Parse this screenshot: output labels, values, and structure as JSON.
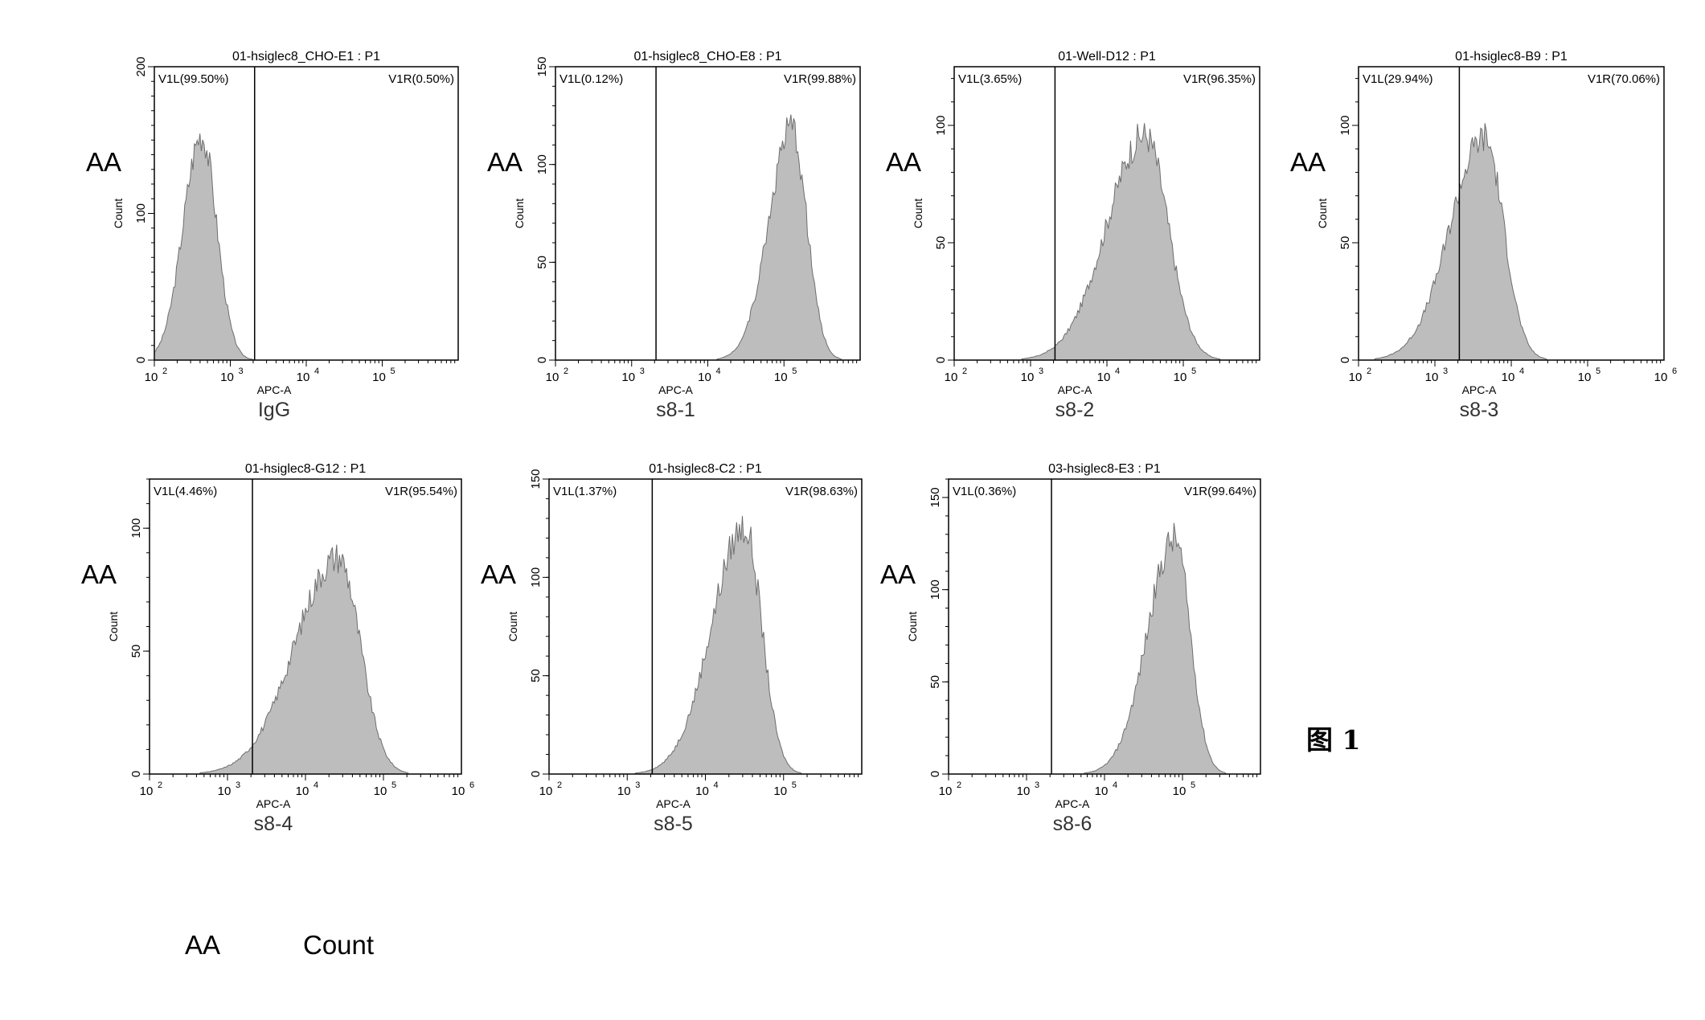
{
  "figure_label": "图 1",
  "legend": {
    "abbr": "AA",
    "meaning": "Count"
  },
  "chart_data": [
    {
      "type": "area",
      "title": "01-hsiglec8_CHO-E1 : P1",
      "xlabel": "APC-A",
      "ylabel": "Count",
      "side_label": "AA",
      "sample": "IgG",
      "xscale": "log",
      "xlim_exp": [
        2,
        6
      ],
      "x_tick_labels": [
        "10",
        "10",
        "10",
        "10"
      ],
      "x_tick_exps": [
        "2",
        "3",
        "4",
        "5"
      ],
      "ylim": [
        0,
        200
      ],
      "y_ticks": [
        0,
        100,
        200
      ],
      "gate_exp": 3.32,
      "gates": [
        {
          "name": "V1L",
          "percent": "99.50%",
          "label": "V1L(99.50%)"
        },
        {
          "name": "V1R",
          "percent": "0.50%",
          "label": "V1R(0.50%)"
        }
      ],
      "histogram": {
        "peak_exp": 2.62,
        "peak_count": 165,
        "sigma_left": 0.24,
        "sigma_right": 0.2
      }
    },
    {
      "type": "area",
      "title": "01-hsiglec8_CHO-E8 : P1",
      "xlabel": "APC-A",
      "ylabel": "Count",
      "side_label": "AA",
      "sample": "s8-1",
      "xscale": "log",
      "xlim_exp": [
        2,
        6
      ],
      "x_tick_labels": [
        "10",
        "10",
        "10",
        "10"
      ],
      "x_tick_exps": [
        "2",
        "3",
        "4",
        "5"
      ],
      "ylim": [
        0,
        150
      ],
      "y_ticks": [
        0,
        50,
        100,
        150
      ],
      "gate_exp": 3.32,
      "gates": [
        {
          "name": "V1L",
          "percent": "0.12%",
          "label": "V1L(0.12%)"
        },
        {
          "name": "V1R",
          "percent": "99.88%",
          "label": "V1R(99.88%)"
        }
      ],
      "histogram": {
        "peak_exp": 5.1,
        "peak_count": 127,
        "sigma_left": 0.3,
        "sigma_right": 0.2
      }
    },
    {
      "type": "area",
      "title": "01-Well-D12 : P1",
      "xlabel": "APC-A",
      "ylabel": "Count",
      "side_label": "AA",
      "sample": "s8-2",
      "xscale": "log",
      "xlim_exp": [
        2,
        6
      ],
      "x_tick_labels": [
        "10",
        "10",
        "10",
        "10"
      ],
      "x_tick_exps": [
        "2",
        "3",
        "4",
        "5"
      ],
      "ylim": [
        0,
        125
      ],
      "y_ticks": [
        0,
        50,
        100
      ],
      "gate_exp": 3.32,
      "gates": [
        {
          "name": "V1L",
          "percent": "3.65%",
          "label": "V1L(3.65%)"
        },
        {
          "name": "V1R",
          "percent": "96.35%",
          "label": "V1R(96.35%)"
        }
      ],
      "histogram": {
        "peak_exp": 4.5,
        "peak_count": 103,
        "sigma_left": 0.5,
        "sigma_right": 0.3
      }
    },
    {
      "type": "area",
      "title": "01-hsiglec8-B9 : P1",
      "xlabel": "APC-A",
      "ylabel": "Count",
      "side_label": "AA",
      "sample": "s8-3",
      "xscale": "log",
      "xlim_exp": [
        2,
        6
      ],
      "x_tick_labels": [
        "10",
        "10",
        "10",
        "10",
        "10"
      ],
      "x_tick_exps": [
        "2",
        "3",
        "4",
        "5",
        "6"
      ],
      "ylim": [
        0,
        125
      ],
      "y_ticks": [
        0,
        50,
        100
      ],
      "gate_exp": 3.32,
      "gates": [
        {
          "name": "V1L",
          "percent": "29.94%",
          "label": "V1L(29.94%)"
        },
        {
          "name": "V1R",
          "percent": "70.06%",
          "label": "V1R(70.06%)"
        }
      ],
      "histogram": {
        "peak_exp": 3.65,
        "peak_count": 102,
        "sigma_left": 0.45,
        "sigma_right": 0.25
      }
    },
    {
      "type": "area",
      "title": "01-hsiglec8-G12 : P1",
      "xlabel": "APC-A",
      "ylabel": "Count",
      "side_label": "AA",
      "sample": "s8-4",
      "xscale": "log",
      "xlim_exp": [
        2,
        6
      ],
      "x_tick_labels": [
        "10",
        "10",
        "10",
        "10",
        "10"
      ],
      "x_tick_exps": [
        "2",
        "3",
        "4",
        "5",
        "6"
      ],
      "ylim": [
        0,
        120
      ],
      "y_ticks": [
        0,
        50,
        100
      ],
      "gate_exp": 3.32,
      "gates": [
        {
          "name": "V1L",
          "percent": "4.46%",
          "label": "V1L(4.46%)"
        },
        {
          "name": "V1R",
          "percent": "95.54%",
          "label": "V1R(95.54%)"
        }
      ],
      "histogram": {
        "peak_exp": 4.42,
        "peak_count": 95,
        "sigma_left": 0.55,
        "sigma_right": 0.28
      }
    },
    {
      "type": "area",
      "title": "01-hsiglec8-C2 : P1",
      "xlabel": "APC-A",
      "ylabel": "Count",
      "side_label": "AA",
      "sample": "s8-5",
      "xscale": "log",
      "xlim_exp": [
        2,
        6
      ],
      "x_tick_labels": [
        "10",
        "10",
        "10",
        "10"
      ],
      "x_tick_exps": [
        "2",
        "3",
        "4",
        "5"
      ],
      "ylim": [
        0,
        150
      ],
      "y_ticks": [
        0,
        50,
        100,
        150
      ],
      "gate_exp": 3.32,
      "gates": [
        {
          "name": "V1L",
          "percent": "1.37%",
          "label": "V1L(1.37%)"
        },
        {
          "name": "V1R",
          "percent": "98.63%",
          "label": "V1R(98.63%)"
        }
      ],
      "histogram": {
        "peak_exp": 4.5,
        "peak_count": 135,
        "sigma_left": 0.42,
        "sigma_right": 0.22
      }
    },
    {
      "type": "area",
      "title": "03-hsiglec8-E3 : P1",
      "xlabel": "APC-A",
      "ylabel": "Count",
      "side_label": "AA",
      "sample": "s8-6",
      "xscale": "log",
      "xlim_exp": [
        2,
        6
      ],
      "x_tick_labels": [
        "10",
        "10",
        "10",
        "10"
      ],
      "x_tick_exps": [
        "2",
        "3",
        "4",
        "5"
      ],
      "ylim": [
        0,
        160
      ],
      "y_ticks": [
        0,
        50,
        100,
        150
      ],
      "gate_exp": 3.32,
      "gates": [
        {
          "name": "V1L",
          "percent": "0.36%",
          "label": "V1L(0.36%)"
        },
        {
          "name": "V1R",
          "percent": "99.64%",
          "label": "V1R(99.64%)"
        }
      ],
      "histogram": {
        "peak_exp": 4.9,
        "peak_count": 137,
        "sigma_left": 0.35,
        "sigma_right": 0.2
      }
    }
  ]
}
